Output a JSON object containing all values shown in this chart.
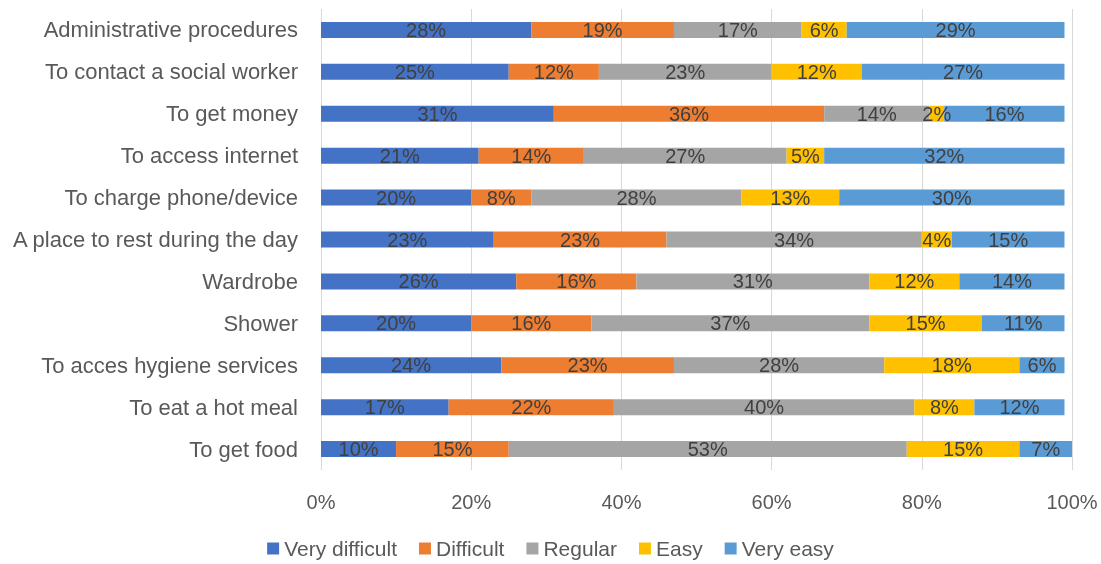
{
  "chart_data": {
    "type": "bar",
    "orientation": "horizontal",
    "stacked": true,
    "categories": [
      "Administrative procedures",
      "To contact a social worker",
      "To get money",
      "To access internet",
      "To charge phone/device",
      "A place to rest during the day",
      "Wardrobe",
      "Shower",
      "To acces hygiene services",
      "To eat a hot meal",
      "To get food"
    ],
    "series": [
      {
        "name": "Very difficult",
        "color": "#4472c4",
        "values": [
          28,
          25,
          31,
          21,
          20,
          23,
          26,
          20,
          24,
          17,
          10
        ],
        "value_labels": [
          "28%",
          "25%",
          "31%",
          "21%",
          "20%",
          "23%",
          "26%",
          "20%",
          "24%",
          "17%",
          "10%"
        ]
      },
      {
        "name": "Difficult",
        "color": "#ed7d31",
        "values": [
          19,
          12,
          36,
          14,
          8,
          23,
          16,
          16,
          23,
          22,
          15
        ],
        "value_labels": [
          "19%",
          "12%",
          "36%",
          "14%",
          "8%",
          "23%",
          "16%",
          "16%",
          "23%",
          "22%",
          "15%"
        ]
      },
      {
        "name": "Regular",
        "color": "#a5a5a5",
        "values": [
          17,
          23,
          14,
          27,
          28,
          34,
          31,
          37,
          28,
          40,
          53
        ],
        "value_labels": [
          "17%",
          "23%",
          "14%",
          "27%",
          "28%",
          "34%",
          "31%",
          "37%",
          "28%",
          "40%",
          "53%"
        ]
      },
      {
        "name": "Easy",
        "color": "#ffc000",
        "values": [
          6,
          12,
          2,
          5,
          13,
          4,
          12,
          15,
          18,
          8,
          15
        ],
        "value_labels": [
          "6%",
          "12%",
          "2%",
          "5%",
          "13%",
          "4%",
          "12%",
          "15%",
          "18%",
          "8%",
          "15%"
        ]
      },
      {
        "name": "Very easy",
        "color": "#5b9bd5",
        "values": [
          29,
          27,
          16,
          32,
          30,
          15,
          14,
          11,
          6,
          12,
          7
        ],
        "value_labels": [
          "29%",
          "27%",
          "16%",
          "32%",
          "30%",
          "15%",
          "14%",
          "11%",
          "6%",
          "12%",
          "7%"
        ]
      }
    ],
    "xlim": [
      0,
      100
    ],
    "xticks": [
      {
        "value": 0,
        "label": "0%"
      },
      {
        "value": 20,
        "label": "20%"
      },
      {
        "value": 40,
        "label": "40%"
      },
      {
        "value": 60,
        "label": "60%"
      },
      {
        "value": 80,
        "label": "80%"
      },
      {
        "value": 100,
        "label": "100%"
      }
    ],
    "grid": "x",
    "legend": "bottom"
  }
}
